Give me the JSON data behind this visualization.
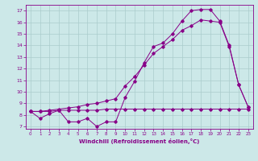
{
  "xlabel": "Windchill (Refroidissement éolien,°C)",
  "bg_color": "#cce8e8",
  "line_color": "#880088",
  "grid_color": "#aacccc",
  "xlim": [
    -0.5,
    23.5
  ],
  "ylim": [
    6.8,
    17.5
  ],
  "xticks": [
    0,
    1,
    2,
    3,
    4,
    5,
    6,
    7,
    8,
    9,
    10,
    11,
    12,
    13,
    14,
    15,
    16,
    17,
    18,
    19,
    20,
    21,
    22,
    23
  ],
  "yticks": [
    7,
    8,
    9,
    10,
    11,
    12,
    13,
    14,
    15,
    16,
    17
  ],
  "line1_x": [
    0,
    1,
    2,
    3,
    4,
    5,
    6,
    7,
    8,
    9,
    10,
    11,
    12,
    13,
    14,
    15,
    16,
    17,
    18,
    19,
    20,
    21,
    22,
    23
  ],
  "line1_y": [
    8.3,
    7.7,
    8.1,
    8.4,
    7.4,
    7.4,
    7.7,
    7.0,
    7.4,
    7.4,
    9.5,
    10.9,
    12.5,
    13.9,
    14.2,
    15.0,
    16.1,
    17.0,
    17.1,
    17.1,
    16.1,
    14.0,
    10.6,
    8.7
  ],
  "line2_x": [
    0,
    1,
    2,
    3,
    4,
    5,
    6,
    7,
    8,
    9,
    10,
    11,
    12,
    13,
    14,
    15,
    16,
    17,
    18,
    19,
    20,
    21,
    22,
    23
  ],
  "line2_y": [
    8.3,
    8.3,
    8.3,
    8.4,
    8.4,
    8.4,
    8.4,
    8.4,
    8.5,
    8.5,
    8.5,
    8.5,
    8.5,
    8.5,
    8.5,
    8.5,
    8.5,
    8.5,
    8.5,
    8.5,
    8.5,
    8.5,
    8.5,
    8.5
  ],
  "line3_x": [
    0,
    1,
    2,
    3,
    4,
    5,
    6,
    7,
    8,
    9,
    10,
    11,
    12,
    13,
    14,
    15,
    16,
    17,
    18,
    19,
    20,
    21,
    22,
    23
  ],
  "line3_y": [
    8.3,
    8.3,
    8.4,
    8.5,
    8.6,
    8.7,
    8.9,
    9.0,
    9.2,
    9.4,
    10.5,
    11.3,
    12.3,
    13.3,
    13.9,
    14.5,
    15.3,
    15.7,
    16.2,
    16.1,
    16.0,
    13.9,
    10.6,
    8.7
  ]
}
